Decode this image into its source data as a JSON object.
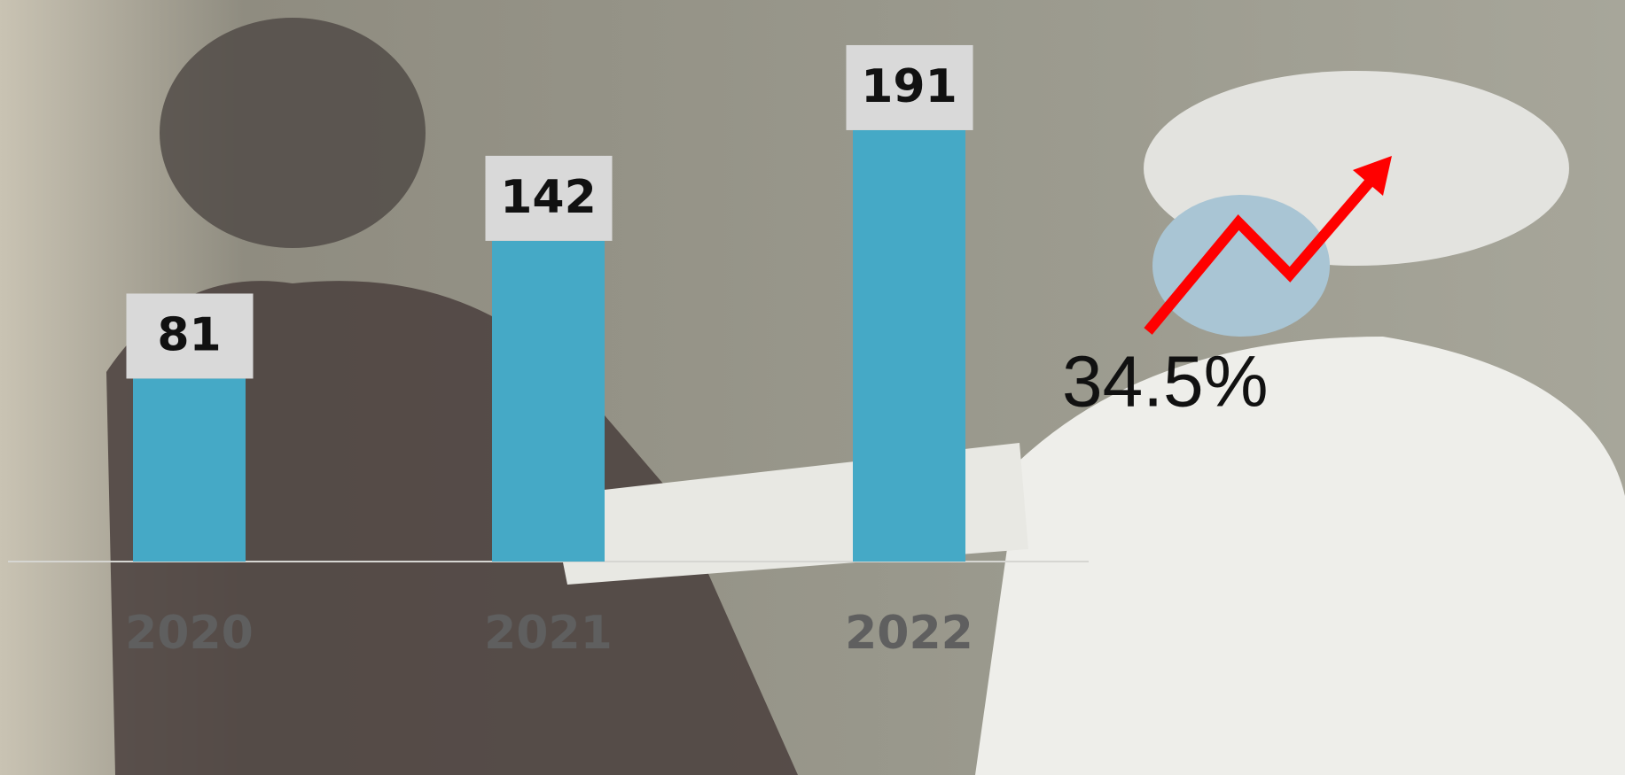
{
  "chart_data": {
    "type": "bar",
    "categories": [
      "2020",
      "2021",
      "2022"
    ],
    "values": [
      81,
      142,
      191
    ],
    "color": "#45a9c6",
    "annotations": [
      "34.5%"
    ]
  }
}
